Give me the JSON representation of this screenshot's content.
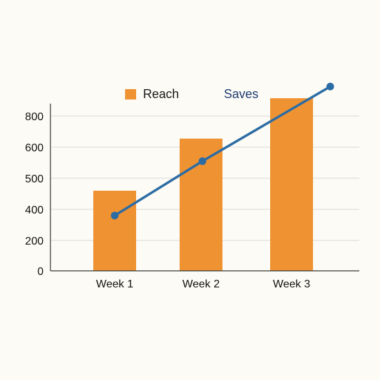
{
  "chart_data": {
    "type": "bar",
    "categories": [
      "Week 1",
      "Week 2",
      "Week 3"
    ],
    "y_ticks": [
      "0",
      "200",
      "400",
      "500",
      "600",
      "800"
    ],
    "grid": true,
    "legend_position": "top",
    "series": [
      {
        "name": "Reach",
        "type": "bar",
        "color": "#ef9232",
        "values": [
          460,
          655,
          915
        ]
      },
      {
        "name": "Saves",
        "type": "line",
        "color": "#2b6ca4",
        "values": [
          360,
          555,
          990
        ]
      }
    ]
  },
  "colors": {
    "background": "#fcfbf5",
    "grid": "#d9d9d9",
    "axis": "#333333",
    "legend_saves_text": "#1f3d73"
  }
}
